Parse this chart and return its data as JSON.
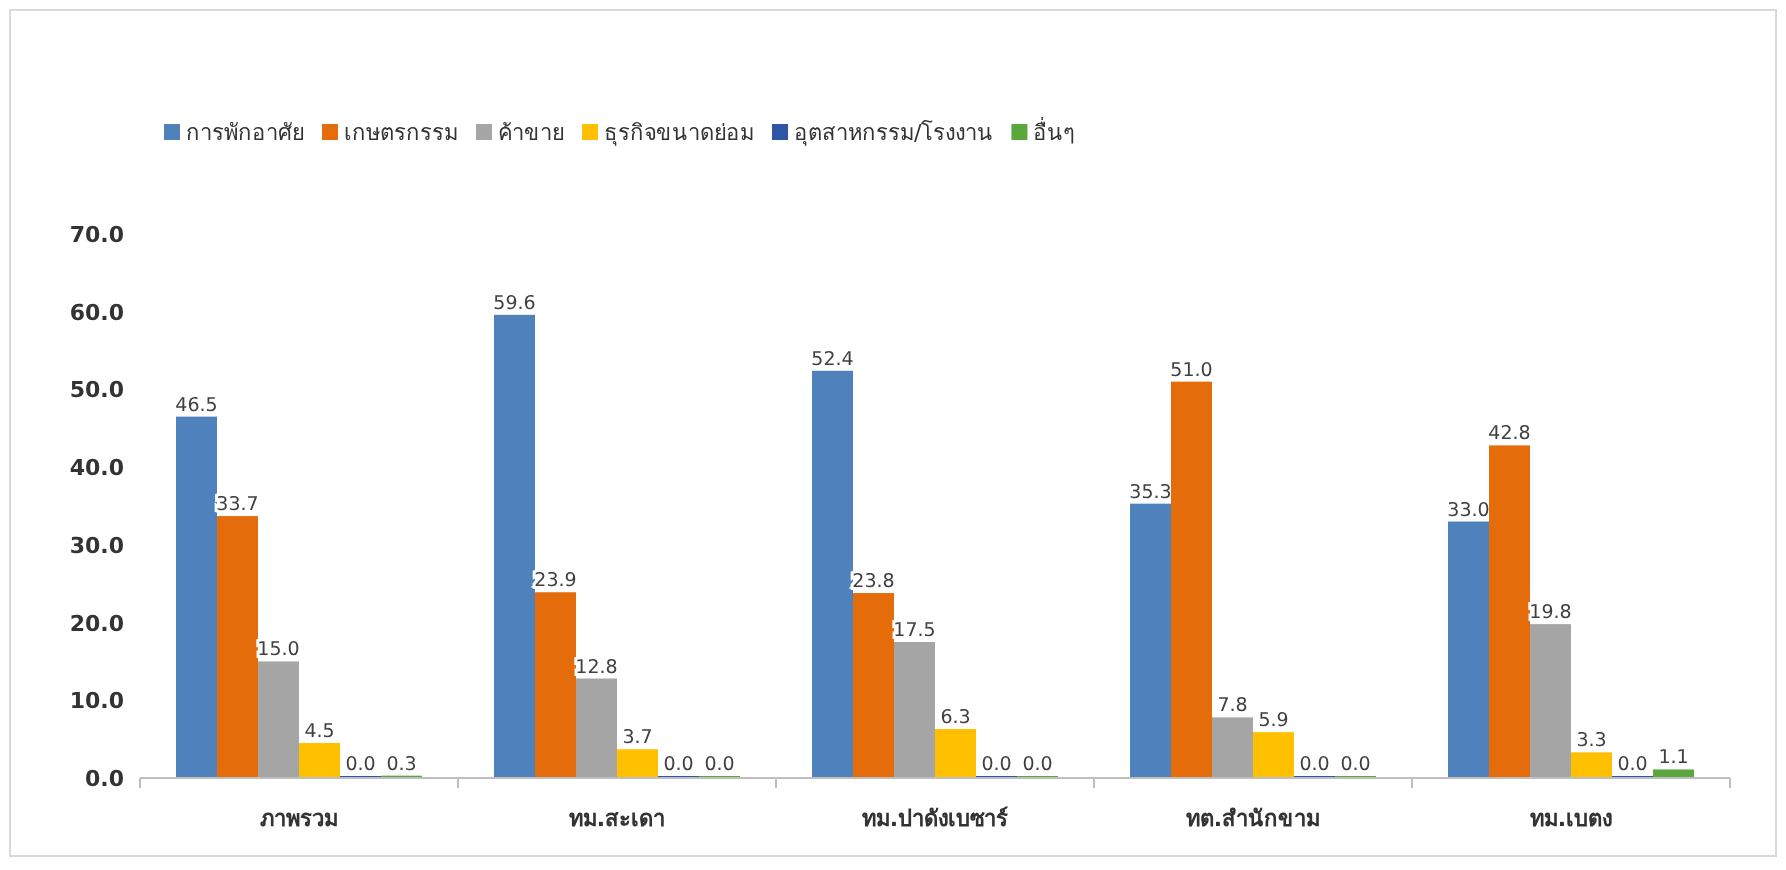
{
  "chart_data": {
    "type": "bar",
    "categories": [
      "ภาพรวม",
      "ทม.สะเดา",
      "ทม.ปาดังเบซาร์",
      "ทต.สำนักขาม",
      "ทม.เบตง"
    ],
    "series": [
      {
        "name": "การพักอาศัย",
        "color": "#4f81bd",
        "values": [
          46.5,
          59.6,
          52.4,
          35.3,
          33.0
        ],
        "value_labels": [
          "46.5",
          "59.6",
          "52.4",
          "35.3",
          "33.0"
        ]
      },
      {
        "name": "เกษตรกรรม",
        "color": "#e46c0a",
        "values": [
          33.7,
          23.9,
          23.8,
          51.0,
          42.8
        ],
        "value_labels": [
          "33.7",
          "23.9",
          "23.8",
          "51.0",
          "42.8"
        ]
      },
      {
        "name": "ค้าขาย",
        "color": "#a5a5a5",
        "values": [
          15.0,
          12.8,
          17.5,
          7.8,
          19.8
        ],
        "value_labels": [
          "15.0",
          "12.8",
          "17.5",
          "7.8",
          "19.8"
        ]
      },
      {
        "name": "ธุรกิจขนาดย่อม",
        "color": "#ffc000",
        "values": [
          4.5,
          3.7,
          6.3,
          5.9,
          3.3
        ],
        "value_labels": [
          "4.5",
          "3.7",
          "6.3",
          "5.9",
          "3.3"
        ]
      },
      {
        "name": "อุตสาหกรรม/โรงงาน",
        "color": "#2e58a6",
        "values": [
          0.0,
          0.0,
          0.0,
          0.0,
          0.0
        ],
        "value_labels": [
          "0.0",
          "0.0",
          "0.0",
          "0.0",
          "0.0"
        ]
      },
      {
        "name": "อื่นๆ",
        "color": "#5aa83c",
        "values": [
          0.3,
          0.0,
          0.0,
          0.0,
          1.1
        ],
        "value_labels": [
          "0.3",
          "0.0",
          "0.0",
          "0.0",
          "1.1"
        ]
      }
    ],
    "ylim": [
      0,
      70
    ],
    "yticks": [
      {
        "value": 0,
        "label": "0.0"
      },
      {
        "value": 10,
        "label": "10.0"
      },
      {
        "value": 20,
        "label": "20.0"
      },
      {
        "value": 30,
        "label": "30.0"
      },
      {
        "value": 40,
        "label": "40.0"
      },
      {
        "value": 50,
        "label": "50.0"
      },
      {
        "value": 60,
        "label": "60.0"
      },
      {
        "value": 70,
        "label": "70.0"
      }
    ],
    "legend": "top",
    "grid": false
  }
}
